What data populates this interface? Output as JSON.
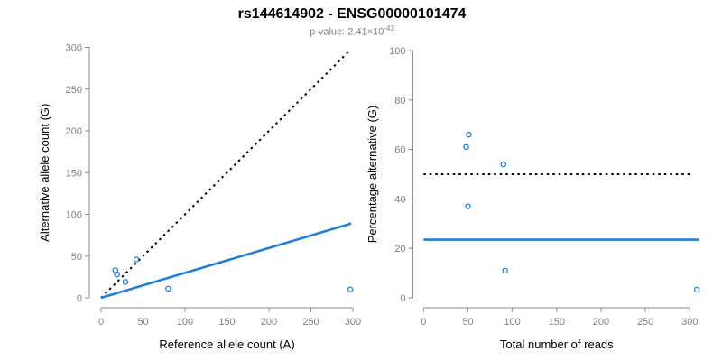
{
  "page": {
    "title": "rs144614902 - ENSG00000101474",
    "subtitle_prefix": "p-value: 2.41×10",
    "subtitle_exponent": "-43"
  },
  "colors": {
    "accent_blue": "#1E7FD6",
    "dotted_line": "#000000",
    "axis_line": "#8C8C8C",
    "tick_text": "#808080",
    "title_text": "#000000",
    "subtitle_text": "#808080",
    "background": "#FFFFFF"
  },
  "chart_data": [
    {
      "type": "scatter",
      "xlabel": "Reference allele count (A)",
      "ylabel": "Alternative allele count (G)",
      "xlim": [
        0,
        300
      ],
      "ylim": [
        0,
        300
      ],
      "xticks": [
        0,
        50,
        100,
        150,
        200,
        250,
        300
      ],
      "yticks": [
        0,
        50,
        100,
        150,
        200,
        250,
        300
      ],
      "grid": false,
      "legend": "none",
      "points": [
        [
          17,
          33
        ],
        [
          19,
          28
        ],
        [
          29,
          19
        ],
        [
          42,
          46
        ],
        [
          80,
          11
        ],
        [
          297,
          10
        ]
      ],
      "lines": [
        {
          "name": "identity-dotted",
          "style": "dotted",
          "color": "#000000",
          "from": [
            0,
            0
          ],
          "to": [
            295,
            295
          ]
        },
        {
          "name": "fitted-ratio",
          "style": "solid",
          "color": "#1E7FD6",
          "from": [
            0,
            0
          ],
          "to": [
            298,
            89
          ]
        }
      ]
    },
    {
      "type": "scatter",
      "xlabel": "Total number of reads",
      "ylabel": "Percentage alternative (G)",
      "xlim": [
        0,
        300
      ],
      "ylim": [
        0,
        100
      ],
      "xticks": [
        0,
        50,
        100,
        150,
        200,
        250,
        300
      ],
      "yticks": [
        0,
        20,
        40,
        60,
        80,
        100
      ],
      "grid": false,
      "legend": "none",
      "points": [
        [
          51,
          66
        ],
        [
          48,
          61
        ],
        [
          50,
          37
        ],
        [
          90,
          54
        ],
        [
          92,
          11
        ],
        [
          308,
          3.3
        ]
      ],
      "lines": [
        {
          "name": "fifty-percent-dotted",
          "style": "dotted",
          "color": "#000000",
          "from": [
            0,
            50
          ],
          "to": [
            304,
            50
          ]
        },
        {
          "name": "mean-percentage",
          "style": "solid",
          "color": "#1E7FD6",
          "from": [
            0,
            23.5
          ],
          "to": [
            310,
            23.5
          ]
        }
      ]
    }
  ]
}
